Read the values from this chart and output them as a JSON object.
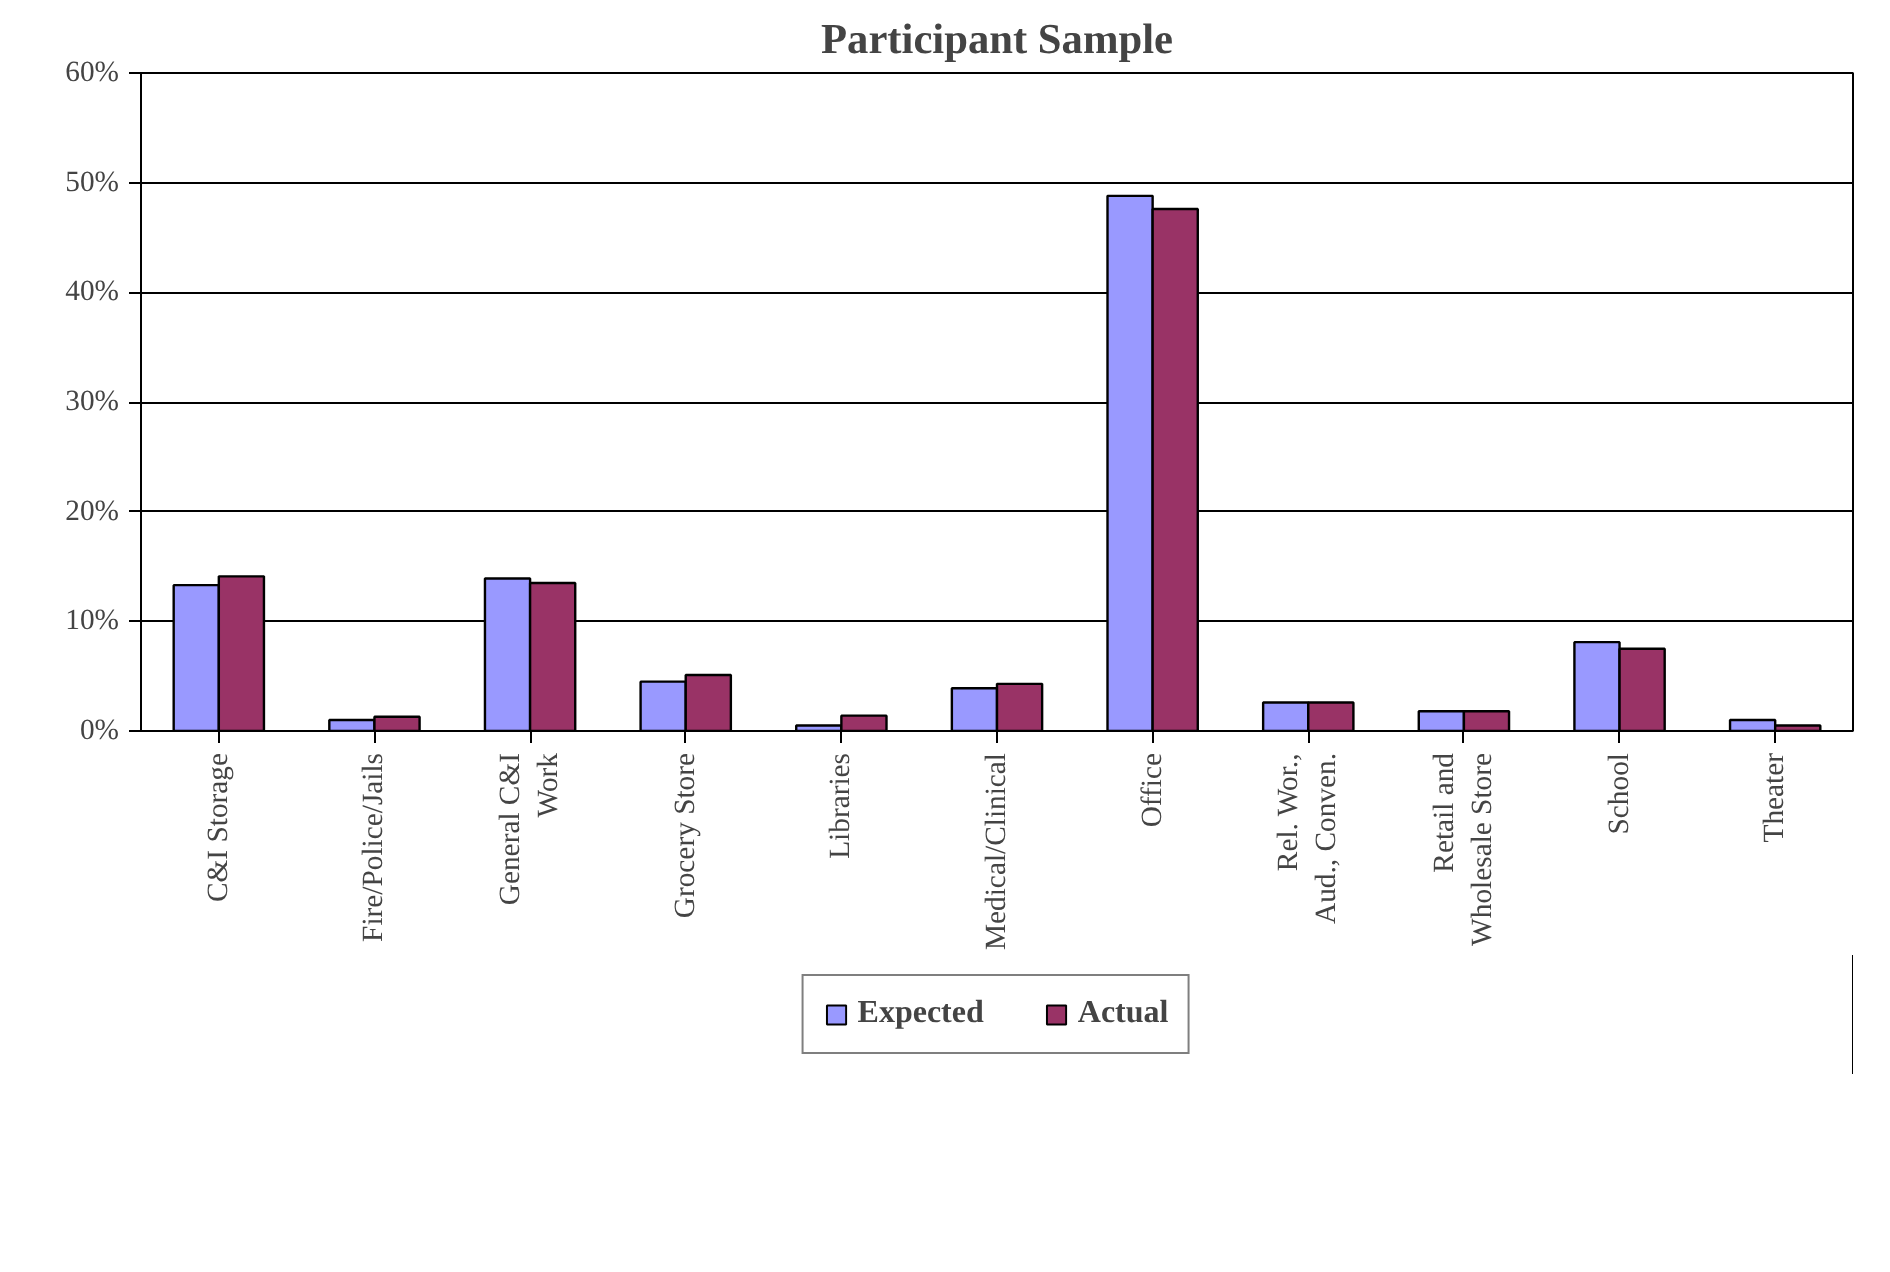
{
  "chart_data": {
    "type": "bar",
    "title": "Participant Sample",
    "categories": [
      "C&I Storage",
      "Fire/Police/Jails",
      "General C&I\nWork",
      "Grocery Store",
      "Libraries",
      "Medical/Clinical",
      "Office",
      "Rel. Wor.,\nAud., Conven.",
      "Retail and\nWholesale Store",
      "School",
      "Theater"
    ],
    "series": [
      {
        "name": "Expected",
        "color": "#9999ff",
        "values": [
          13.3,
          1.0,
          13.9,
          4.5,
          0.5,
          3.9,
          48.8,
          2.6,
          1.8,
          8.1,
          1.0
        ]
      },
      {
        "name": "Actual",
        "color": "#993366",
        "values": [
          14.1,
          1.3,
          13.5,
          5.1,
          1.4,
          4.3,
          47.6,
          2.6,
          1.8,
          7.5,
          0.5
        ]
      }
    ],
    "ylim": [
      0,
      60
    ],
    "yticks": [
      {
        "value": 0,
        "label": "0%"
      },
      {
        "value": 10,
        "label": "10%"
      },
      {
        "value": 20,
        "label": "20%"
      },
      {
        "value": 30,
        "label": "30%"
      },
      {
        "value": 40,
        "label": "40%"
      },
      {
        "value": 50,
        "label": "50%"
      },
      {
        "value": 60,
        "label": "60%"
      }
    ],
    "grid": "y",
    "legend": "bottom"
  }
}
